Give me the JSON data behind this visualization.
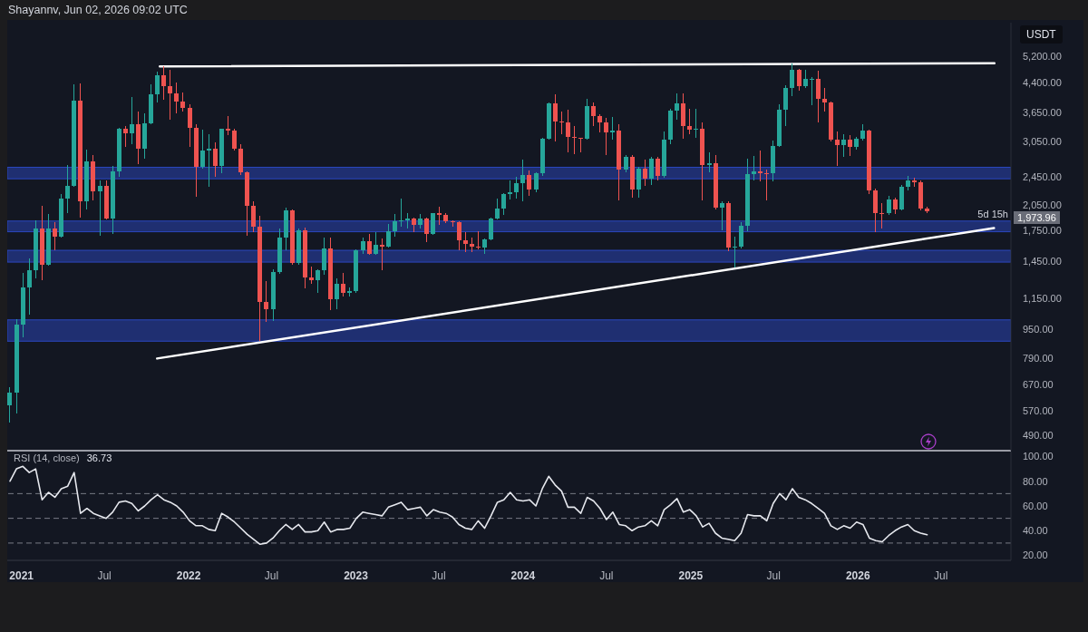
{
  "chart_data": [
    {
      "type": "candlestick",
      "annotations": [
        "Shayannv, Jun 02, 2026 09:02 UTC",
        "1,973.96",
        "5d 15h"
      ],
      "ylabel": "USDT",
      "x": [
        "2020-12-07",
        "2020-12-21",
        "2021-01-04",
        "2021-01-18",
        "2021-02-01",
        "2021-02-15",
        "2021-03-01",
        "2021-03-15",
        "2021-03-29",
        "2021-04-12",
        "2021-04-26",
        "2021-05-10",
        "2021-05-24",
        "2021-06-07",
        "2021-06-21",
        "2021-07-05",
        "2021-07-19",
        "2021-08-02",
        "2021-08-16",
        "2021-08-30",
        "2021-09-13",
        "2021-09-27",
        "2021-10-11",
        "2021-10-25",
        "2021-11-08",
        "2021-11-22",
        "2021-12-06",
        "2021-12-20",
        "2022-01-03",
        "2022-01-17",
        "2022-01-31",
        "2022-02-14",
        "2022-02-28",
        "2022-03-14",
        "2022-03-28",
        "2022-04-11",
        "2022-04-25",
        "2022-05-09",
        "2022-05-23",
        "2022-06-06",
        "2022-06-20",
        "2022-07-04",
        "2022-07-18",
        "2022-08-01",
        "2022-08-15",
        "2022-08-29",
        "2022-09-12",
        "2022-09-26",
        "2022-10-10",
        "2022-10-24",
        "2022-11-07",
        "2022-11-21",
        "2022-12-05",
        "2022-12-19",
        "2023-01-02",
        "2023-01-16",
        "2023-01-30",
        "2023-02-13",
        "2023-02-27",
        "2023-03-13",
        "2023-03-27",
        "2023-04-10",
        "2023-04-24",
        "2023-05-08",
        "2023-05-22",
        "2023-06-05",
        "2023-06-19",
        "2023-07-03",
        "2023-07-17",
        "2023-07-31",
        "2023-08-14",
        "2023-08-28",
        "2023-09-11",
        "2023-09-25",
        "2023-10-09",
        "2023-10-23",
        "2023-11-06",
        "2023-11-20",
        "2023-12-04",
        "2023-12-18",
        "2024-01-01",
        "2024-01-15",
        "2024-01-29",
        "2024-02-12",
        "2024-02-26",
        "2024-03-11",
        "2024-03-25",
        "2024-04-08",
        "2024-04-22",
        "2024-05-06",
        "2024-05-20",
        "2024-06-03",
        "2024-06-17",
        "2024-07-01",
        "2024-07-15",
        "2024-07-29",
        "2024-08-12",
        "2024-08-26",
        "2024-09-09",
        "2024-09-23",
        "2024-10-07",
        "2024-10-21",
        "2024-11-04",
        "2024-11-18",
        "2024-12-02",
        "2024-12-16",
        "2024-12-30",
        "2025-01-13",
        "2025-01-27",
        "2025-02-10",
        "2025-02-24",
        "2025-03-10",
        "2025-03-24",
        "2025-04-07",
        "2025-04-21",
        "2025-05-05",
        "2025-05-19",
        "2025-06-02",
        "2025-06-16",
        "2025-06-30",
        "2025-07-14",
        "2025-07-28",
        "2025-08-11",
        "2025-08-25",
        "2025-09-08",
        "2025-09-22",
        "2025-10-06",
        "2025-10-20",
        "2025-11-03",
        "2025-11-17",
        "2025-12-01",
        "2025-12-15",
        "2025-12-29",
        "2026-01-12",
        "2026-01-26",
        "2026-02-09",
        "2026-02-23",
        "2026-03-09",
        "2026-03-23",
        "2026-04-06",
        "2026-04-20",
        "2026-05-04",
        "2026-05-18",
        "2026-06-01"
      ],
      "ohlc": [
        [
          591,
          660,
          530,
          640
        ],
        [
          640,
          1010,
          560,
          975
        ],
        [
          975,
          1350,
          900,
          1230
        ],
        [
          1230,
          1475,
          1040,
          1370
        ],
        [
          1370,
          1870,
          1300,
          1780
        ],
        [
          1780,
          2040,
          1290,
          1420
        ],
        [
          1420,
          1940,
          1410,
          1780
        ],
        [
          1780,
          1850,
          1550,
          1690
        ],
        [
          1690,
          2200,
          1680,
          2140
        ],
        [
          2140,
          2640,
          1950,
          2320
        ],
        [
          2320,
          4370,
          2300,
          3940
        ],
        [
          3940,
          4380,
          1900,
          2100
        ],
        [
          2100,
          2900,
          2000,
          2700
        ],
        [
          2700,
          2800,
          2120,
          2240
        ],
        [
          2240,
          2400,
          1700,
          2320
        ],
        [
          2320,
          2400,
          1880,
          1890
        ],
        [
          1890,
          2620,
          1720,
          2540
        ],
        [
          2540,
          3330,
          2450,
          3300
        ],
        [
          3300,
          3370,
          2950,
          3220
        ],
        [
          3220,
          4030,
          3000,
          3400
        ],
        [
          3400,
          3670,
          2650,
          2920
        ],
        [
          2920,
          3630,
          2750,
          3410
        ],
        [
          3410,
          4370,
          3400,
          4090
        ],
        [
          4090,
          4720,
          3900,
          4610
        ],
        [
          4610,
          4870,
          3960,
          4310
        ],
        [
          4310,
          4780,
          3500,
          4120
        ],
        [
          4120,
          4400,
          3640,
          3920
        ],
        [
          3920,
          4140,
          3680,
          3770
        ],
        [
          3770,
          3840,
          2950,
          3330
        ],
        [
          3330,
          3400,
          2160,
          2600
        ],
        [
          2600,
          3280,
          2580,
          2880
        ],
        [
          2880,
          3200,
          2300,
          2920
        ],
        [
          2920,
          3040,
          2450,
          2620
        ],
        [
          2620,
          3310,
          2500,
          3300
        ],
        [
          3300,
          3580,
          3170,
          3260
        ],
        [
          3260,
          3300,
          2880,
          2920
        ],
        [
          2920,
          3000,
          2480,
          2520
        ],
        [
          2520,
          2530,
          1700,
          2040
        ],
        [
          2040,
          2100,
          1740,
          1800
        ],
        [
          1800,
          1920,
          880,
          1125
        ],
        [
          1125,
          1280,
          990,
          1075
        ],
        [
          1075,
          1380,
          1000,
          1355
        ],
        [
          1355,
          1780,
          1340,
          1680
        ],
        [
          1680,
          2020,
          1550,
          1985
        ],
        [
          1985,
          2000,
          1420,
          1430
        ],
        [
          1430,
          1780,
          1420,
          1760
        ],
        [
          1760,
          1790,
          1220,
          1310
        ],
        [
          1310,
          1400,
          1260,
          1290
        ],
        [
          1290,
          1380,
          1190,
          1370
        ],
        [
          1370,
          1680,
          1330,
          1570
        ],
        [
          1570,
          1680,
          1070,
          1140
        ],
        [
          1140,
          1300,
          1075,
          1260
        ],
        [
          1260,
          1350,
          1160,
          1190
        ],
        [
          1190,
          1230,
          1160,
          1200
        ],
        [
          1200,
          1560,
          1190,
          1550
        ],
        [
          1550,
          1680,
          1520,
          1645
        ],
        [
          1645,
          1720,
          1510,
          1515
        ],
        [
          1515,
          1740,
          1510,
          1600
        ],
        [
          1600,
          1670,
          1370,
          1590
        ],
        [
          1590,
          1830,
          1580,
          1750
        ],
        [
          1750,
          1940,
          1690,
          1860
        ],
        [
          1860,
          2140,
          1800,
          1870
        ],
        [
          1870,
          1960,
          1780,
          1890
        ],
        [
          1890,
          1900,
          1740,
          1820
        ],
        [
          1820,
          1940,
          1780,
          1890
        ],
        [
          1890,
          1900,
          1630,
          1720
        ],
        [
          1720,
          1960,
          1710,
          1955
        ],
        [
          1955,
          2030,
          1820,
          1935
        ],
        [
          1935,
          1950,
          1840,
          1860
        ],
        [
          1860,
          1870,
          1800,
          1850
        ],
        [
          1850,
          1860,
          1550,
          1650
        ],
        [
          1650,
          1740,
          1530,
          1610
        ],
        [
          1610,
          1680,
          1530,
          1590
        ],
        [
          1590,
          1750,
          1560,
          1580
        ],
        [
          1580,
          1670,
          1520,
          1660
        ],
        [
          1660,
          1900,
          1650,
          1890
        ],
        [
          1890,
          2140,
          1880,
          2010
        ],
        [
          2010,
          2210,
          1930,
          2200
        ],
        [
          2200,
          2400,
          2130,
          2220
        ],
        [
          2220,
          2450,
          2140,
          2350
        ],
        [
          2350,
          2720,
          2100,
          2480
        ],
        [
          2480,
          2550,
          2170,
          2270
        ],
        [
          2270,
          2520,
          2220,
          2500
        ],
        [
          2500,
          3130,
          2460,
          3100
        ],
        [
          3100,
          3900,
          3080,
          3880
        ],
        [
          3880,
          4090,
          3050,
          3450
        ],
        [
          3450,
          3680,
          3200,
          3430
        ],
        [
          3430,
          3730,
          2850,
          3150
        ],
        [
          3150,
          3360,
          2820,
          3120
        ],
        [
          3120,
          3130,
          2860,
          3110
        ],
        [
          3110,
          3980,
          3080,
          3810
        ],
        [
          3810,
          3890,
          3360,
          3570
        ],
        [
          3570,
          3620,
          3240,
          3440
        ],
        [
          3440,
          3540,
          2810,
          3240
        ],
        [
          3240,
          3560,
          3080,
          3260
        ],
        [
          3260,
          3400,
          2110,
          2570
        ],
        [
          2570,
          2800,
          2520,
          2770
        ],
        [
          2770,
          2800,
          2150,
          2270
        ],
        [
          2270,
          2600,
          2150,
          2580
        ],
        [
          2580,
          2730,
          2310,
          2420
        ],
        [
          2420,
          2770,
          2330,
          2750
        ],
        [
          2750,
          2770,
          2400,
          2460
        ],
        [
          2460,
          3250,
          2430,
          3080
        ],
        [
          3080,
          3740,
          3000,
          3700
        ],
        [
          3700,
          4110,
          3500,
          3870
        ],
        [
          3870,
          4110,
          3100,
          3360
        ],
        [
          3360,
          3750,
          3200,
          3280
        ],
        [
          3280,
          3750,
          3130,
          3300
        ],
        [
          3300,
          3440,
          2120,
          2630
        ],
        [
          2630,
          2850,
          2520,
          2660
        ],
        [
          2660,
          2800,
          2000,
          2020
        ],
        [
          2020,
          2100,
          1760,
          2080
        ],
        [
          2080,
          2100,
          1540,
          1580
        ],
        [
          1580,
          1690,
          1390,
          1590
        ],
        [
          1590,
          1850,
          1570,
          1810
        ],
        [
          1810,
          2740,
          1750,
          2490
        ],
        [
          2490,
          2790,
          2400,
          2530
        ],
        [
          2530,
          2880,
          2380,
          2510
        ],
        [
          2510,
          2560,
          2110,
          2500
        ],
        [
          2500,
          3070,
          2380,
          2970
        ],
        [
          2970,
          3860,
          2950,
          3720
        ],
        [
          3720,
          4330,
          3360,
          4260
        ],
        [
          4260,
          4950,
          4060,
          4780
        ],
        [
          4780,
          4800,
          4200,
          4300
        ],
        [
          4300,
          4770,
          4250,
          4500
        ],
        [
          4500,
          4550,
          3830,
          4510
        ],
        [
          4510,
          4750,
          3440,
          3980
        ],
        [
          3980,
          4250,
          3680,
          3900
        ],
        [
          3900,
          3920,
          3050,
          3090
        ],
        [
          3090,
          3250,
          2620,
          2990
        ],
        [
          2990,
          3190,
          2780,
          3090
        ],
        [
          3090,
          3180,
          2790,
          2960
        ],
        [
          2960,
          3150,
          2900,
          3100
        ],
        [
          3100,
          3400,
          3070,
          3260
        ],
        [
          3260,
          3280,
          2200,
          2250
        ],
        [
          2250,
          2280,
          1740,
          1960
        ],
        [
          1960,
          2080,
          1780,
          1950
        ],
        [
          1950,
          2180,
          1930,
          2130
        ],
        [
          2130,
          2150,
          1940,
          2000
        ],
        [
          2000,
          2330,
          1990,
          2300
        ],
        [
          2300,
          2470,
          2250,
          2390
        ],
        [
          2390,
          2430,
          2300,
          2370
        ],
        [
          2370,
          2390,
          1990,
          2010
        ],
        [
          2010,
          2030,
          1960,
          1973.96
        ]
      ],
      "colors": [
        "#26a69a",
        "#26a69a",
        "#26a69a",
        "#26a69a",
        "#26a69a",
        "#ef5350",
        "#26a69a",
        "#ef5350",
        "#26a69a",
        "#26a69a",
        "#26a69a",
        "#ef5350",
        "#26a69a",
        "#ef5350",
        "#26a69a",
        "#ef5350",
        "#26a69a",
        "#26a69a",
        "#ef5350",
        "#26a69a",
        "#ef5350",
        "#26a69a",
        "#26a69a",
        "#26a69a",
        "#ef5350",
        "#ef5350",
        "#ef5350",
        "#ef5350",
        "#ef5350",
        "#ef5350",
        "#26a69a",
        "#26a69a",
        "#ef5350",
        "#26a69a",
        "#ef5350",
        "#ef5350",
        "#ef5350",
        "#ef5350",
        "#ef5350",
        "#ef5350",
        "#ef5350",
        "#26a69a",
        "#26a69a",
        "#26a69a",
        "#ef5350",
        "#26a69a",
        "#ef5350",
        "#ef5350",
        "#26a69a",
        "#26a69a",
        "#ef5350",
        "#26a69a",
        "#ef5350",
        "#26a69a",
        "#26a69a",
        "#26a69a",
        "#ef5350",
        "#26a69a",
        "#ef5350",
        "#26a69a",
        "#26a69a",
        "#26a69a",
        "#26a69a",
        "#ef5350",
        "#26a69a",
        "#ef5350",
        "#26a69a",
        "#ef5350",
        "#ef5350",
        "#ef5350",
        "#ef5350",
        "#ef5350",
        "#ef5350",
        "#ef5350",
        "#26a69a",
        "#26a69a",
        "#26a69a",
        "#26a69a",
        "#26a69a",
        "#26a69a",
        "#26a69a",
        "#ef5350",
        "#26a69a",
        "#26a69a",
        "#26a69a",
        "#ef5350",
        "#ef5350",
        "#ef5350",
        "#ef5350",
        "#ef5350",
        "#26a69a",
        "#ef5350",
        "#ef5350",
        "#ef5350",
        "#26a69a",
        "#ef5350",
        "#26a69a",
        "#ef5350",
        "#26a69a",
        "#ef5350",
        "#26a69a",
        "#ef5350",
        "#26a69a",
        "#26a69a",
        "#26a69a",
        "#ef5350",
        "#ef5350",
        "#26a69a",
        "#ef5350",
        "#26a69a",
        "#ef5350",
        "#26a69a",
        "#ef5350",
        "#26a69a",
        "#26a69a",
        "#26a69a",
        "#26a69a",
        "#ef5350",
        "#ef5350",
        "#26a69a",
        "#26a69a",
        "#26a69a",
        "#26a69a",
        "#ef5350",
        "#26a69a",
        "#26a69a",
        "#ef5350",
        "#ef5350",
        "#ef5350",
        "#ef5350",
        "#26a69a",
        "#ef5350",
        "#26a69a",
        "#26a69a",
        "#ef5350",
        "#ef5350",
        "#ef5350",
        "#26a69a",
        "#ef5350",
        "#26a69a",
        "#26a69a",
        "#ef5350",
        "#ef5350",
        "#ef5350"
      ],
      "series": [
        {
          "type": "line",
          "x": [
            "2021-10-30",
            "2026-10-26"
          ],
          "values": [
            4870,
            4970
          ],
          "color": "#ffffff"
        },
        {
          "type": "line",
          "x": [
            "2021-10-24",
            "2026-10-25"
          ],
          "values": [
            790,
            1780
          ],
          "color": "#ffffff"
        }
      ],
      "bands": [
        {
          "axis": "y",
          "from": 2420,
          "to": 2600,
          "color": "#2b47c0"
        },
        {
          "axis": "y",
          "from": 1740,
          "to": 1860,
          "color": "#2b47c0"
        },
        {
          "axis": "y",
          "from": 1440,
          "to": 1550,
          "color": "#2b47c0"
        },
        {
          "axis": "y",
          "from": 880,
          "to": 1005,
          "color": "#2b47c0"
        }
      ],
      "log": true,
      "ylim": [
        445,
        6400
      ],
      "yticks": [
        {
          "value": 490,
          "label": "490.00"
        },
        {
          "value": 570,
          "label": "570.00"
        },
        {
          "value": 670,
          "label": "670.00"
        },
        {
          "value": 790,
          "label": "790.00"
        },
        {
          "value": 950,
          "label": "950.00"
        },
        {
          "value": 1150,
          "label": "1,150.00"
        },
        {
          "value": 1450,
          "label": "1,450.00"
        },
        {
          "value": 1750,
          "label": "1,750.00"
        },
        {
          "value": 2050,
          "label": "2,050.00"
        },
        {
          "value": 2450,
          "label": "2,450.00"
        },
        {
          "value": 3050,
          "label": "3,050.00"
        },
        {
          "value": 3650,
          "label": "3,650.00"
        },
        {
          "value": 4400,
          "label": "4,400.00"
        },
        {
          "value": 5200,
          "label": "5,200.00"
        }
      ],
      "xlim": [
        "2020-12-01",
        "2026-12-01"
      ],
      "tick_labels": "y"
    },
    {
      "type": "line",
      "title": "RSI (14, close)",
      "annotations": [
        "36.73"
      ],
      "x": [
        "2020-12-07",
        "2020-12-21",
        "2021-01-04",
        "2021-01-18",
        "2021-02-01",
        "2021-02-15",
        "2021-03-01",
        "2021-03-15",
        "2021-03-29",
        "2021-04-12",
        "2021-04-26",
        "2021-05-10",
        "2021-05-24",
        "2021-06-07",
        "2021-06-21",
        "2021-07-05",
        "2021-07-19",
        "2021-08-02",
        "2021-08-16",
        "2021-08-30",
        "2021-09-13",
        "2021-09-27",
        "2021-10-11",
        "2021-10-25",
        "2021-11-08",
        "2021-11-22",
        "2021-12-06",
        "2021-12-20",
        "2022-01-03",
        "2022-01-17",
        "2022-01-31",
        "2022-02-14",
        "2022-02-28",
        "2022-03-14",
        "2022-03-28",
        "2022-04-11",
        "2022-04-25",
        "2022-05-09",
        "2022-05-23",
        "2022-06-06",
        "2022-06-20",
        "2022-07-04",
        "2022-07-18",
        "2022-08-01",
        "2022-08-15",
        "2022-08-29",
        "2022-09-12",
        "2022-09-26",
        "2022-10-10",
        "2022-10-24",
        "2022-11-07",
        "2022-11-21",
        "2022-12-05",
        "2022-12-19",
        "2023-01-02",
        "2023-01-16",
        "2023-01-30",
        "2023-02-13",
        "2023-02-27",
        "2023-03-13",
        "2023-03-27",
        "2023-04-10",
        "2023-04-24",
        "2023-05-08",
        "2023-05-22",
        "2023-06-05",
        "2023-06-19",
        "2023-07-03",
        "2023-07-17",
        "2023-07-31",
        "2023-08-14",
        "2023-08-28",
        "2023-09-11",
        "2023-09-25",
        "2023-10-09",
        "2023-10-23",
        "2023-11-06",
        "2023-11-20",
        "2023-12-04",
        "2023-12-18",
        "2024-01-01",
        "2024-01-15",
        "2024-01-29",
        "2024-02-12",
        "2024-02-26",
        "2024-03-11",
        "2024-03-25",
        "2024-04-08",
        "2024-04-22",
        "2024-05-06",
        "2024-05-20",
        "2024-06-03",
        "2024-06-17",
        "2024-07-01",
        "2024-07-15",
        "2024-07-29",
        "2024-08-12",
        "2024-08-26",
        "2024-09-09",
        "2024-09-23",
        "2024-10-07",
        "2024-10-21",
        "2024-11-04",
        "2024-11-18",
        "2024-12-02",
        "2024-12-16",
        "2024-12-30",
        "2025-01-13",
        "2025-01-27",
        "2025-02-10",
        "2025-02-24",
        "2025-03-10",
        "2025-03-24",
        "2025-04-07",
        "2025-04-21",
        "2025-05-05",
        "2025-05-19",
        "2025-06-02",
        "2025-06-16",
        "2025-06-30",
        "2025-07-14",
        "2025-07-28",
        "2025-08-11",
        "2025-08-25",
        "2025-09-08",
        "2025-09-22",
        "2025-10-06",
        "2025-10-20",
        "2025-11-03",
        "2025-11-17",
        "2025-12-01",
        "2025-12-15",
        "2025-12-29",
        "2026-01-12",
        "2026-01-26",
        "2026-02-09",
        "2026-02-23",
        "2026-03-09",
        "2026-03-23",
        "2026-04-06",
        "2026-04-20",
        "2026-05-04",
        "2026-05-18",
        "2026-06-01"
      ],
      "values": [
        80,
        90,
        92,
        87,
        90,
        65,
        71,
        67,
        74,
        76,
        87,
        54,
        58,
        54,
        52,
        50,
        55,
        63,
        64,
        62,
        56,
        60,
        65,
        69,
        65,
        63,
        60,
        55,
        48,
        44,
        44,
        41,
        40,
        54,
        51,
        47,
        42,
        37,
        33,
        29,
        30,
        34,
        40,
        45,
        41,
        45,
        39,
        39,
        40,
        47,
        39,
        41,
        41,
        42,
        50,
        55,
        54,
        53,
        52,
        59,
        61,
        63,
        57,
        58,
        59,
        52,
        57,
        55,
        54,
        51,
        45,
        42,
        41,
        48,
        42,
        52,
        63,
        65,
        71,
        65,
        64,
        65,
        60,
        74,
        84,
        77,
        72,
        59,
        59,
        54,
        67,
        64,
        58,
        49,
        55,
        45,
        44,
        40,
        43,
        44,
        48,
        44,
        57,
        61,
        66,
        55,
        57,
        52,
        43,
        46,
        38,
        34,
        33,
        32,
        38,
        53,
        52,
        52,
        48,
        62,
        70,
        65,
        74,
        67,
        65,
        62,
        58,
        54,
        44,
        41,
        44,
        42,
        47,
        45,
        34,
        32,
        31,
        36,
        40,
        43,
        45,
        40,
        38,
        36.73
      ],
      "color": "#e6e8ee",
      "ylim": [
        16,
        104
      ],
      "yticks": [
        {
          "value": 20,
          "label": "20.00"
        },
        {
          "value": 40,
          "label": "40.00"
        },
        {
          "value": 60,
          "label": "60.00"
        },
        {
          "value": 80,
          "label": "80.00"
        },
        {
          "value": 100,
          "label": "100.00"
        }
      ],
      "xlim": [
        "2020-12-01",
        "2026-12-01"
      ],
      "xticks": [
        {
          "value": "2021-01-01",
          "label": "2021"
        },
        {
          "value": "2021-07-01",
          "label": "Jul"
        },
        {
          "value": "2022-01-01",
          "label": "2022"
        },
        {
          "value": "2022-07-01",
          "label": "Jul"
        },
        {
          "value": "2023-01-01",
          "label": "2023"
        },
        {
          "value": "2023-07-01",
          "label": "Jul"
        },
        {
          "value": "2024-01-01",
          "label": "2024"
        },
        {
          "value": "2024-07-01",
          "label": "Jul"
        },
        {
          "value": "2025-01-01",
          "label": "2025"
        },
        {
          "value": "2025-07-01",
          "label": "Jul"
        },
        {
          "value": "2026-01-01",
          "label": "2026"
        },
        {
          "value": "2026-07-01",
          "label": "Jul"
        }
      ],
      "ref_lines": [
        {
          "axis": "y",
          "value": 70,
          "line_style": "dashed",
          "color": "#787b86"
        },
        {
          "axis": "y",
          "value": 50,
          "line_style": "dashed",
          "color": "#787b86"
        },
        {
          "axis": "y",
          "value": 30,
          "line_style": "dashed",
          "color": "#787b86"
        }
      ]
    }
  ]
}
